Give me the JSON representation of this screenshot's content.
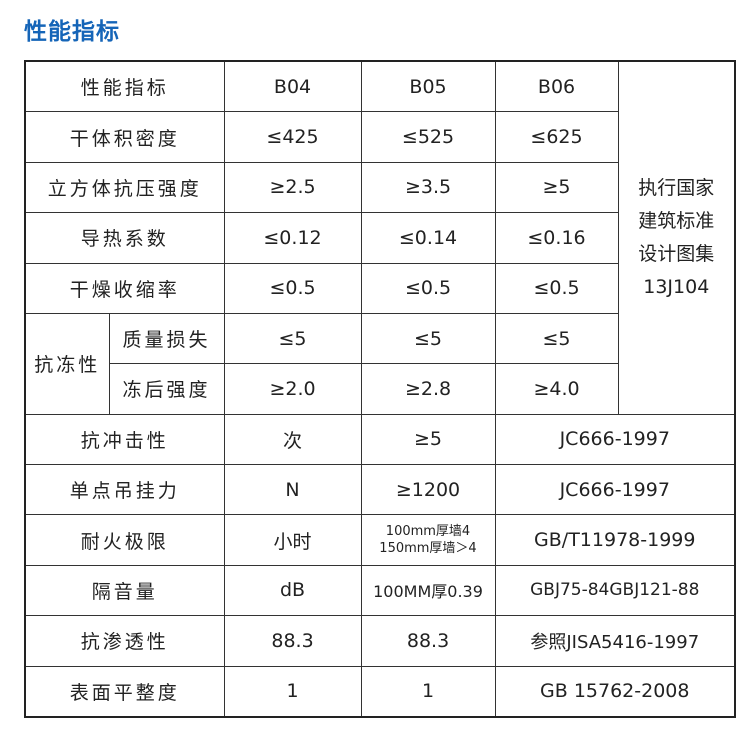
{
  "title": "性能指标",
  "table": {
    "header": [
      "性能指标",
      "B04",
      "B05",
      "B06"
    ],
    "note": [
      "执行国家",
      "建筑标准",
      "设计图集",
      "13J104"
    ],
    "rows": [
      [
        "干体积密度",
        "≤425",
        "≤525",
        "≤625"
      ],
      [
        "立方体抗压强度",
        "≥2.5",
        "≥3.5",
        "≥5"
      ],
      [
        "导热系数",
        "≤0.12",
        "≤0.14",
        "≤0.16"
      ],
      [
        "干燥收缩率",
        "≤0.5",
        "≤0.5",
        "≤0.5"
      ],
      [
        "抗冻性",
        "质量损失",
        "≤5",
        "≤5",
        "≤5"
      ],
      [
        "冻后强度",
        "≥2.0",
        "≥2.8",
        "≥4.0"
      ],
      [
        "抗冲击性",
        "次",
        "≥5",
        "JC666-1997"
      ],
      [
        "单点吊挂力",
        "N",
        "≥1200",
        "JC666-1997"
      ],
      [
        "耐火极限",
        "小时",
        [
          "100mm厚墙4",
          "150mm厚墙＞4"
        ],
        "GB/T11978-1999"
      ],
      [
        "隔音量",
        "dB",
        "100MM厚0.39",
        "GBJ75-84GBJ121-88"
      ],
      [
        "抗渗透性",
        "88.3",
        "88.3",
        "参照JISA5416-1997"
      ],
      [
        "表面平整度",
        "1",
        "1",
        "GB 15762-2008"
      ]
    ]
  }
}
